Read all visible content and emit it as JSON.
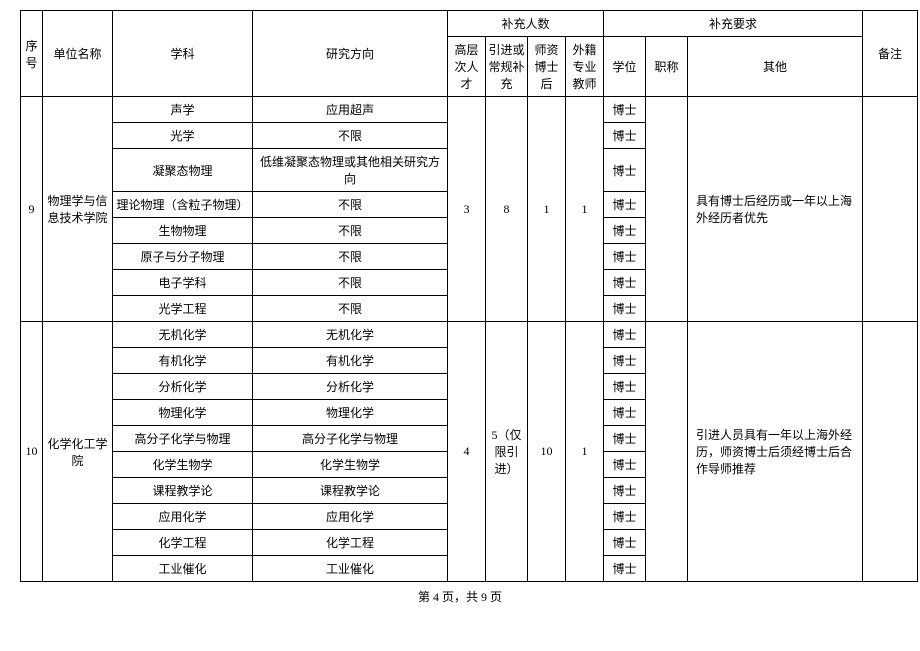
{
  "headers": {
    "seq": "序号",
    "unit": "单位名称",
    "subject": "学科",
    "direction": "研究方向",
    "count_group": "补充人数",
    "req_group": "补充要求",
    "high_level": "高层次人才",
    "intro_regular": "引进或常规补充",
    "postdoc": "师资博士后",
    "foreign": "外籍专业教师",
    "degree": "学位",
    "title": "职称",
    "other": "其他",
    "remark": "备注"
  },
  "groups": [
    {
      "seq": "9",
      "unit": "物理学与信息技术学院",
      "high_level": "3",
      "intro_regular": "8",
      "postdoc": "1",
      "foreign": "1",
      "other": "具有博士后经历或一年以上海外经历者优先",
      "rows": [
        {
          "subject": "声学",
          "direction": "应用超声",
          "degree": "博士"
        },
        {
          "subject": "光学",
          "direction": "不限",
          "degree": "博士"
        },
        {
          "subject": "凝聚态物理",
          "direction": "低维凝聚态物理或其他相关研究方向",
          "degree": "博士"
        },
        {
          "subject": "理论物理（含粒子物理）",
          "direction": "不限",
          "degree": "博士"
        },
        {
          "subject": "生物物理",
          "direction": "不限",
          "degree": "博士"
        },
        {
          "subject": "原子与分子物理",
          "direction": "不限",
          "degree": "博士"
        },
        {
          "subject": "电子学科",
          "direction": "不限",
          "degree": "博士"
        },
        {
          "subject": "光学工程",
          "direction": "不限",
          "degree": "博士"
        }
      ]
    },
    {
      "seq": "10",
      "unit": "化学化工学院",
      "high_level": "4",
      "intro_regular": "5（仅限引进）",
      "postdoc": "10",
      "foreign": "1",
      "other": "引进人员具有一年以上海外经历，师资博士后须经博士后合作导师推荐",
      "rows": [
        {
          "subject": "无机化学",
          "direction": "无机化学",
          "degree": "博士"
        },
        {
          "subject": "有机化学",
          "direction": "有机化学",
          "degree": "博士"
        },
        {
          "subject": "分析化学",
          "direction": "分析化学",
          "degree": "博士"
        },
        {
          "subject": "物理化学",
          "direction": "物理化学",
          "degree": "博士"
        },
        {
          "subject": "高分子化学与物理",
          "direction": "高分子化学与物理",
          "degree": "博士"
        },
        {
          "subject": "化学生物学",
          "direction": "化学生物学",
          "degree": "博士"
        },
        {
          "subject": "课程教学论",
          "direction": "课程教学论",
          "degree": "博士"
        },
        {
          "subject": "应用化学",
          "direction": "应用化学",
          "degree": "博士"
        },
        {
          "subject": "化学工程",
          "direction": "化学工程",
          "degree": "博士"
        },
        {
          "subject": "工业催化",
          "direction": "工业催化",
          "degree": "博士"
        }
      ]
    }
  ],
  "footer": "第 4 页，共 9 页"
}
